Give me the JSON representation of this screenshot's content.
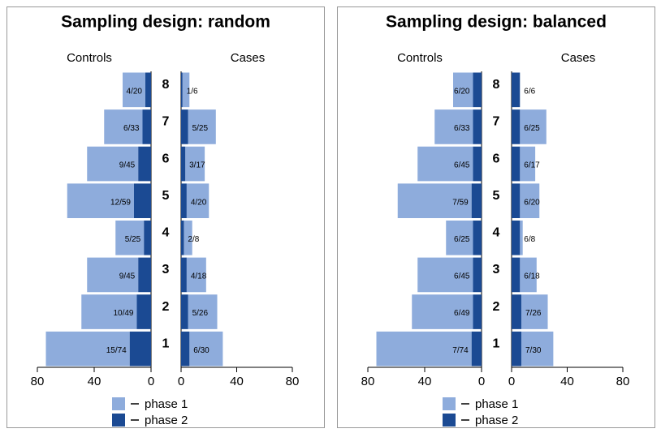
{
  "chart_data": [
    {
      "type": "pyramid",
      "title": "Sampling design: random",
      "categories": [
        "8",
        "7",
        "6",
        "5",
        "4",
        "3",
        "2",
        "1"
      ],
      "left": {
        "title": "Controls",
        "xlim": [
          80,
          0
        ],
        "xticks": [
          80,
          40,
          0
        ],
        "labels": [
          "4/20",
          "6/33",
          "9/45",
          "12/59",
          "5/25",
          "9/45",
          "10/49",
          "15/74"
        ],
        "series": [
          {
            "name": "phase 1",
            "color": "#8eacdc",
            "values": [
              16,
              27,
              36,
              47,
              20,
              36,
              39,
              59
            ]
          },
          {
            "name": "phase 2",
            "color": "#1b4a93",
            "values": [
              4,
              6,
              9,
              12,
              5,
              9,
              10,
              15
            ]
          }
        ]
      },
      "right": {
        "title": "Cases",
        "xlim": [
          0,
          80
        ],
        "xticks": [
          0,
          40,
          80
        ],
        "labels": [
          "1/6",
          "5/25",
          "3/17",
          "4/20",
          "2/8",
          "4/18",
          "5/26",
          "6/30"
        ],
        "series": [
          {
            "name": "phase 1",
            "color": "#8eacdc",
            "values": [
              5,
              20,
              14,
              16,
              6,
              14,
              21,
              24
            ]
          },
          {
            "name": "phase 2",
            "color": "#1b4a93",
            "values": [
              1,
              5,
              3,
              4,
              2,
              4,
              5,
              6
            ]
          }
        ]
      }
    },
    {
      "type": "pyramid",
      "title": "Sampling design: balanced",
      "categories": [
        "8",
        "7",
        "6",
        "5",
        "4",
        "3",
        "2",
        "1"
      ],
      "left": {
        "title": "Controls",
        "xlim": [
          80,
          0
        ],
        "xticks": [
          80,
          40,
          0
        ],
        "labels": [
          "6/20",
          "6/33",
          "6/45",
          "7/59",
          "6/25",
          "6/45",
          "6/49",
          "7/74"
        ],
        "series": [
          {
            "name": "phase 1",
            "color": "#8eacdc",
            "values": [
              14,
              27,
              39,
              52,
              19,
              39,
              43,
              67
            ]
          },
          {
            "name": "phase 2",
            "color": "#1b4a93",
            "values": [
              6,
              6,
              6,
              7,
              6,
              6,
              6,
              7
            ]
          }
        ]
      },
      "right": {
        "title": "Cases",
        "xlim": [
          0,
          80
        ],
        "xticks": [
          0,
          40,
          80
        ],
        "labels": [
          "6/6",
          "6/25",
          "6/17",
          "6/20",
          "6/8",
          "6/18",
          "7/26",
          "7/30"
        ],
        "series": [
          {
            "name": "phase 1",
            "color": "#8eacdc",
            "values": [
              0,
              19,
              11,
              14,
              2,
              12,
              19,
              23
            ]
          },
          {
            "name": "phase 2",
            "color": "#1b4a93",
            "values": [
              6,
              6,
              6,
              6,
              6,
              6,
              7,
              7
            ]
          }
        ]
      }
    }
  ]
}
